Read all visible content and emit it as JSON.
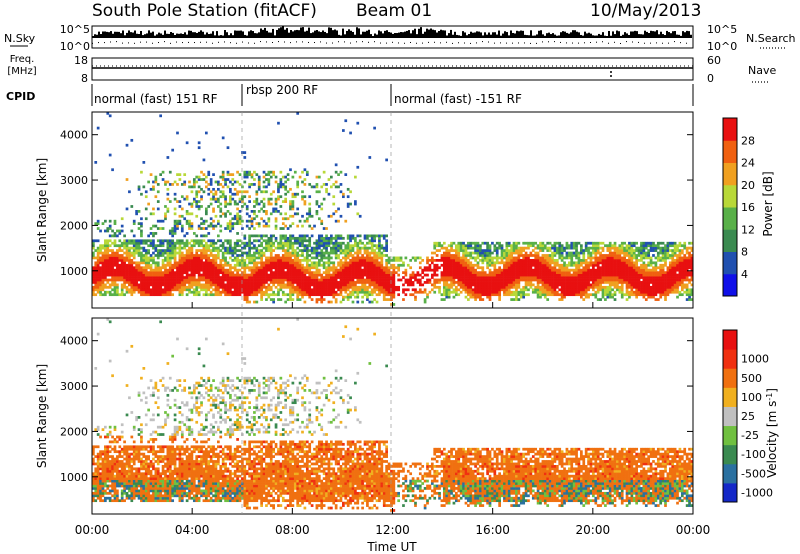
{
  "header": {
    "title": "South Pole Station (fitACF)",
    "beam": "Beam 01",
    "date": "10/May/2013"
  },
  "summary_panels": {
    "nsky_label": "N.Sky",
    "nsearch_label": "N.Search",
    "noise_ticks": [
      "10^5",
      "10^0"
    ],
    "freq_label_line1": "Freq.",
    "freq_label_line2": "[MHz]",
    "freq_ticks": [
      "18",
      "8"
    ],
    "nave_ticks": [
      "60",
      "0"
    ],
    "nave_label": "Nave",
    "cpid_label": "CPID",
    "cpid_segments": [
      {
        "label": "normal (fast) 151 RF",
        "start_hour": 0,
        "end_hour": 6
      },
      {
        "label": "rbsp 200 RF",
        "start_hour": 6,
        "end_hour": 12
      },
      {
        "label": "normal (fast) -151 RF",
        "start_hour": 12,
        "end_hour": 24
      }
    ]
  },
  "chart_data": [
    {
      "type": "heatmap",
      "parameter": "power",
      "ylabel": "Slant Range [km]",
      "xlim": [
        0,
        24
      ],
      "ylim": [
        180,
        4500
      ],
      "yticks": [
        "1000",
        "2000",
        "3000",
        "4000"
      ],
      "colorbar_label": "Power [dB]",
      "colorbar_ticks": [
        "4",
        "8",
        "12",
        "16",
        "20",
        "24",
        "28"
      ],
      "colorbar_colors": [
        "#1010e8",
        "#2050b0",
        "#3a8a50",
        "#58b048",
        "#b8d838",
        "#f0a020",
        "#f06010",
        "#e81010"
      ]
    },
    {
      "type": "heatmap",
      "parameter": "velocity",
      "ylabel": "Slant Range [km]",
      "xlabel": "Time UT",
      "xlim": [
        0,
        24
      ],
      "ylim": [
        180,
        4500
      ],
      "yticks": [
        "1000",
        "2000",
        "3000",
        "4000"
      ],
      "xticks": [
        "00:00",
        "04:00",
        "08:00",
        "12:00",
        "16:00",
        "20:00",
        "00:00"
      ],
      "colorbar_label_main": "Velocity [m s",
      "colorbar_label_sup": "-1",
      "colorbar_label_close": "]",
      "colorbar_ticks": [
        "1000",
        "500",
        "100",
        "25",
        "-25",
        "-100",
        "-500",
        "-1000"
      ],
      "colorbar_colors": [
        "#1428c8",
        "#2a70a0",
        "#3a8a50",
        "#70c040",
        "#c0c0c0",
        "#f0b020",
        "#f07010",
        "#f03010",
        "#e81010"
      ]
    }
  ]
}
